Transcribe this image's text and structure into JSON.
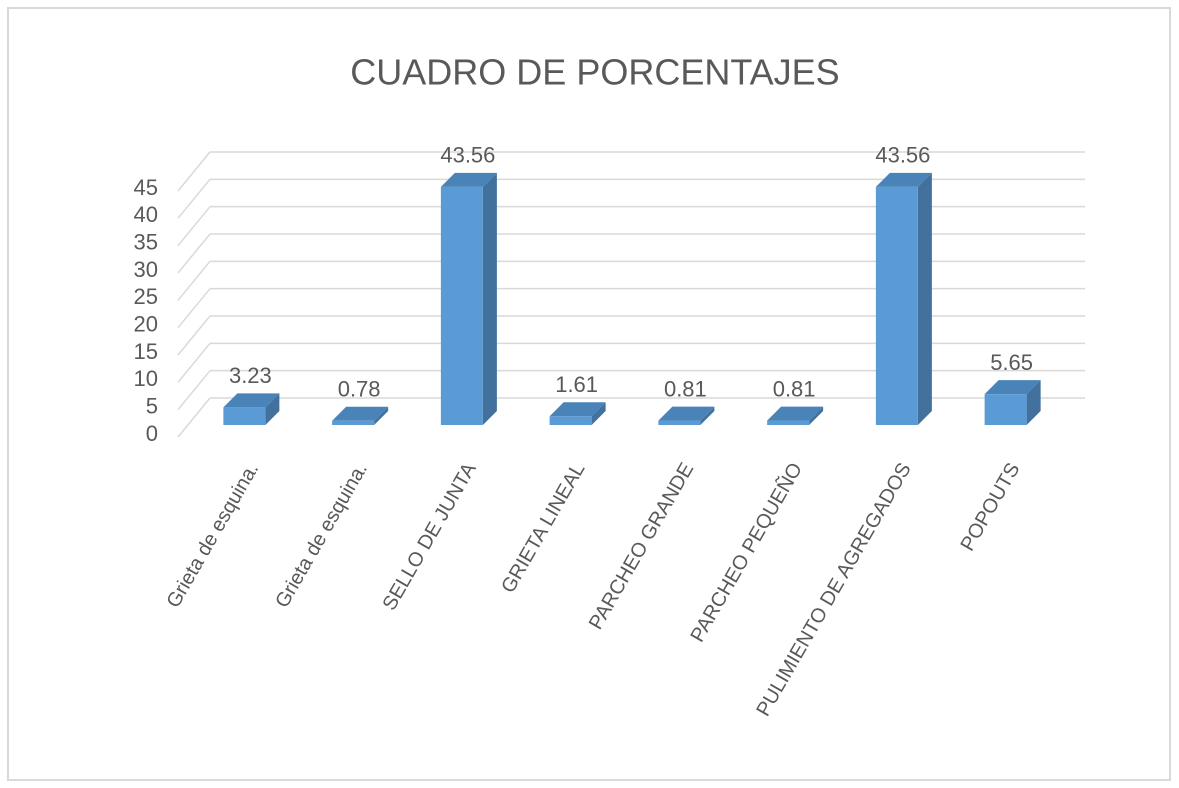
{
  "chart_data": {
    "type": "bar3d",
    "title": "CUADRO DE PORCENTAJES",
    "categories": [
      "Grieta de esquina.",
      "Grieta de esquina.",
      "SELLO DE JUNTA",
      "GRIETA LINEAL",
      "PARCHEO GRANDE",
      "PARCHEO PEQUEÑO",
      "PULIMIENTO DE AGREGADOS",
      "POPOUTS"
    ],
    "values": [
      3.23,
      0.78,
      43.56,
      1.61,
      0.81,
      0.81,
      43.56,
      5.65
    ],
    "color": "#5b9bd5",
    "ylim": [
      0,
      45
    ],
    "yticks": [
      0,
      5,
      10,
      15,
      20,
      25,
      30,
      35,
      40,
      45
    ],
    "grid": true
  }
}
